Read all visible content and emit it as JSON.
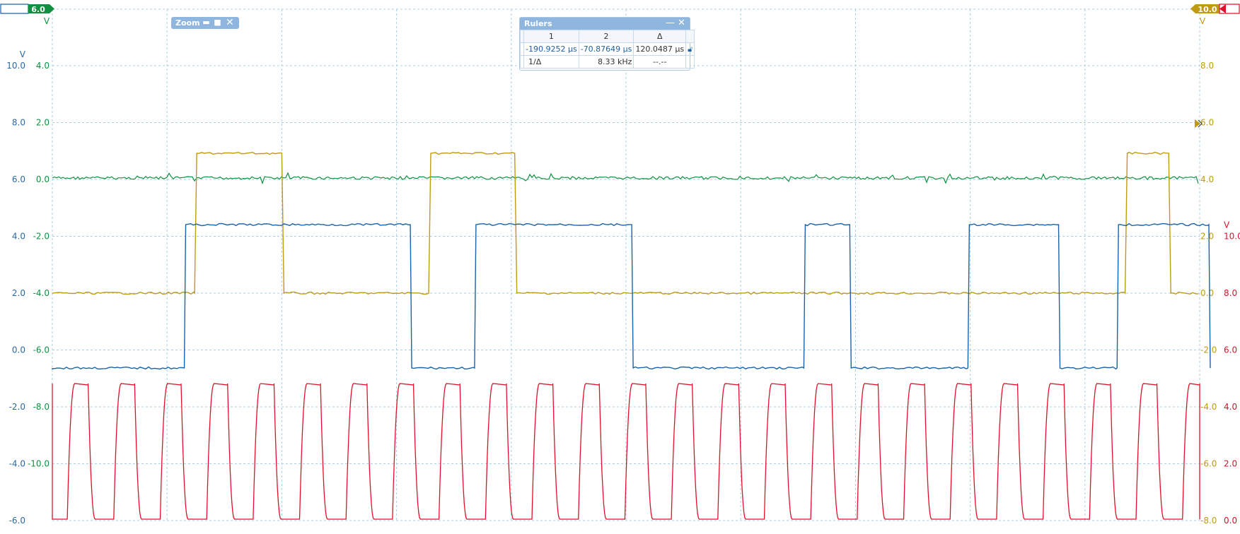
{
  "zoom_panel": {
    "title": "Zoom"
  },
  "rulers_panel": {
    "title": "Rulers",
    "columns": [
      "1",
      "2",
      "Δ"
    ],
    "row1": {
      "r1": "-190.9252 µs",
      "r2": "-70.87649 µs",
      "delta": "120.0487 µs"
    },
    "row2": {
      "label": "1/Δ",
      "r2": "8.33 kHz",
      "delta": "--.--"
    }
  },
  "tags": {
    "left_offset": "6.0",
    "right_offset": "10.0",
    "left_unit": "V",
    "right_unit": "V"
  },
  "colors": {
    "green": "#109040",
    "blue": "#1a62a8",
    "gold": "#c09a15",
    "red": "#e0102a",
    "grid": "#a8cfe3"
  },
  "chart_data": {
    "type": "line",
    "x_divisions": 10,
    "y_divisions": 9,
    "grid": true,
    "axes": [
      {
        "side": "left-outer",
        "unit": "V",
        "color": "#2a6aa8",
        "ticks": [
          "10.0",
          "8.0",
          "6.0",
          "4.0",
          "2.0",
          "0.0",
          "-2.0",
          "-4.0",
          "-6.0"
        ]
      },
      {
        "side": "left-inner",
        "unit": "",
        "color": "#109040",
        "ticks": [
          "4.0",
          "2.0",
          "0.0",
          "-2.0",
          "-4.0",
          "-6.0",
          "-8.0",
          "-10.0"
        ]
      },
      {
        "side": "right-inner",
        "unit": "V",
        "color": "#c09a15",
        "ticks": [
          "8.0",
          "6.0",
          "4.0",
          "2.0",
          "0.0",
          "-2.0",
          "-4.0",
          "-6.0",
          "-8.0"
        ]
      },
      {
        "side": "right-outer",
        "unit": "V",
        "color": "#e0102a",
        "ticks": [
          "10.0",
          "8.0",
          "6.0",
          "4.0",
          "2.0",
          "0.0"
        ]
      }
    ],
    "series": [
      {
        "color": "#109040",
        "kind": "noise",
        "level": 0.0
      },
      {
        "color": "#c09a15",
        "kind": "pulses",
        "low": 0.0,
        "high": 4.8,
        "pulses": [
          [
            1.24,
            2.0
          ],
          [
            3.28,
            4.03
          ],
          [
            9.35,
            9.73
          ]
        ]
      },
      {
        "color": "#1a62a8",
        "kind": "pulses",
        "low": -6.6,
        "high": 4.4,
        "pulses": [
          [
            1.15,
            3.12
          ],
          [
            3.68,
            5.05
          ],
          [
            6.55,
            6.95
          ],
          [
            7.98,
            8.77
          ],
          [
            9.28,
            10.08
          ]
        ]
      },
      {
        "color": "#e0102a",
        "kind": "square",
        "low": 0.0,
        "high": 4.8,
        "period_div": 0.405,
        "first_rise_div": 0.13
      }
    ]
  }
}
